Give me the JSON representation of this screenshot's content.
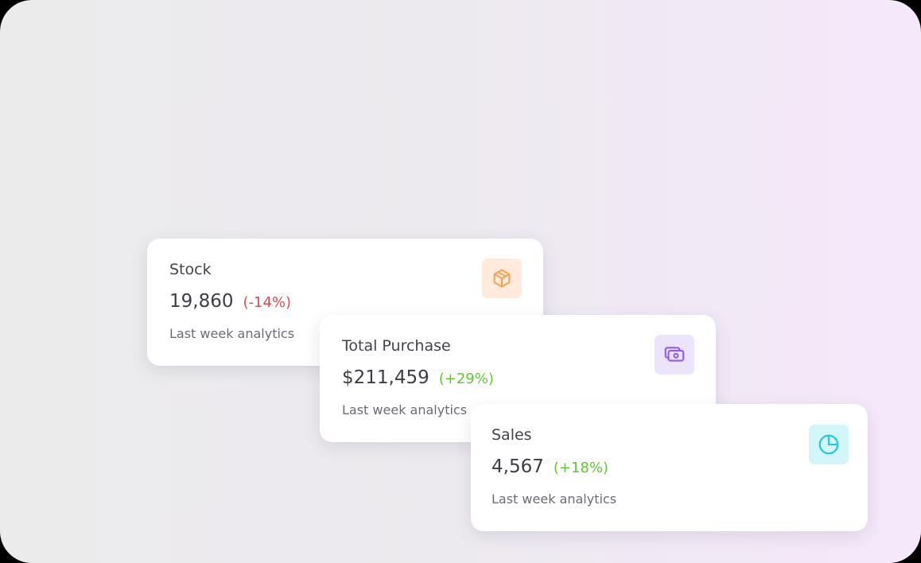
{
  "cards": [
    {
      "title": "Stock",
      "value": "19,860",
      "change": "(-14%)",
      "subtitle": "Last week analytics"
    },
    {
      "title": "Total Purchase",
      "value": "$211,459",
      "change": "(+29%)",
      "subtitle": "Last week analytics"
    },
    {
      "title": "Sales",
      "value": "4,567",
      "change": "(+18%)",
      "subtitle": "Last week analytics"
    }
  ]
}
